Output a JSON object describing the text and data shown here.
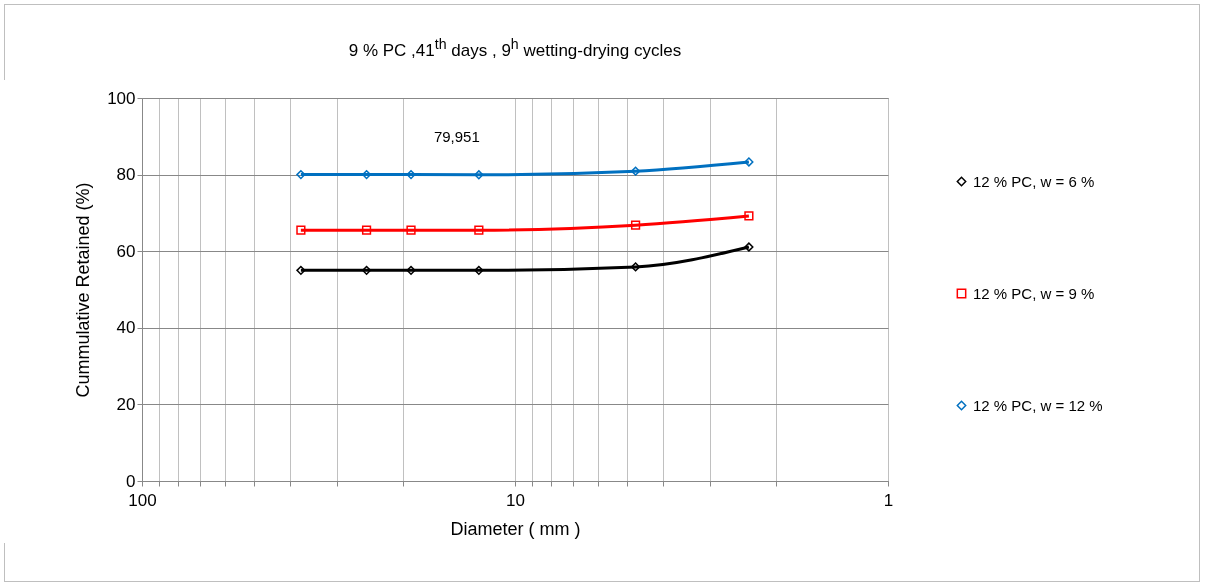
{
  "chart_data": {
    "type": "line",
    "title": "9 % PC ,41$^{th}$ days , 9$^{h}$ wetting-drying cycles",
    "xlabel": "Diameter ( mm )",
    "ylabel": "Cummulative Retained (%)",
    "x": [
      37.5,
      25,
      19,
      12.5,
      4.75,
      2.36
    ],
    "series": [
      {
        "name": "12 % PC, w = 6 %",
        "color": "#000000",
        "marker": "diamond",
        "values": [
          55,
          55,
          55,
          55,
          55.9,
          61.1
        ]
      },
      {
        "name": "12 % PC, w = 9 %",
        "color": "#ff0000",
        "marker": "square",
        "values": [
          65.5,
          65.5,
          65.5,
          65.5,
          66.8,
          69.2
        ]
      },
      {
        "name": "12 % PC, w = 12 %",
        "color": "#0070c0",
        "marker": "diamond",
        "values": [
          80,
          80,
          80,
          79.951,
          80.9,
          83.3
        ]
      }
    ],
    "log": "x",
    "xlim": [
      100,
      1
    ],
    "xticks": [
      100,
      {
        "value": 90,
        "label": null
      },
      {
        "value": 80,
        "label": null
      },
      {
        "value": 70,
        "label": null
      },
      {
        "value": 60,
        "label": null
      },
      {
        "value": 50,
        "label": null
      },
      {
        "value": 40,
        "label": null
      },
      {
        "value": 30,
        "label": null
      },
      {
        "value": 20,
        "label": null
      },
      10,
      {
        "value": 9,
        "label": null
      },
      {
        "value": 8,
        "label": null
      },
      {
        "value": 7,
        "label": null
      },
      {
        "value": 6,
        "label": null
      },
      {
        "value": 5,
        "label": null
      },
      {
        "value": 4,
        "label": null
      },
      {
        "value": 3,
        "label": null
      },
      {
        "value": 2,
        "label": null
      },
      1
    ],
    "ylim": [
      0,
      100
    ],
    "yticks": [
      0,
      20,
      40,
      60,
      80,
      100
    ],
    "grid": true,
    "legend": "right",
    "line_style": "solid",
    "annotations": [
      {
        "text": "79,951",
        "x": 12.5,
        "y": 79.951
      }
    ]
  }
}
